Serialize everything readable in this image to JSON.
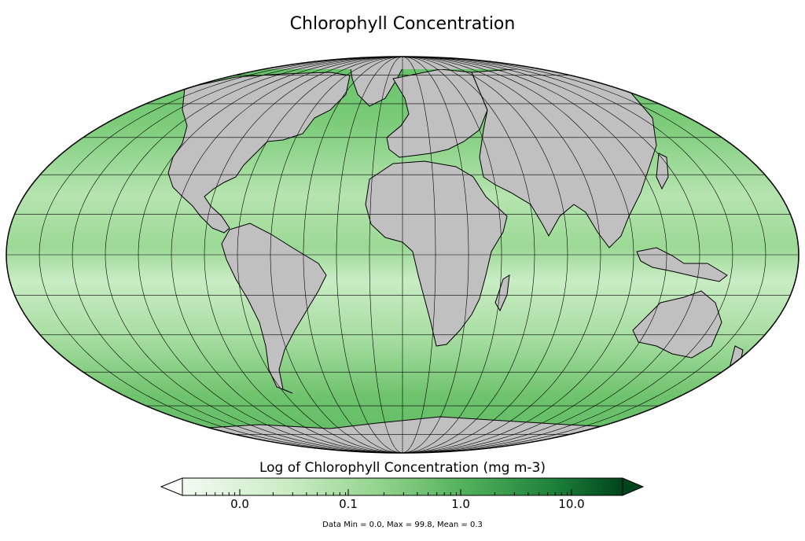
{
  "title": "Chlorophyll Concentration",
  "colorbar": {
    "label": "Log of Chlorophyll Concentration (mg m-3)",
    "ticks": [
      "0.0",
      "0.1",
      "1.0",
      "10.0"
    ],
    "scale": "log",
    "extend": "both",
    "colors": {
      "low": "#f2faf1",
      "mid": "#74c476",
      "high": "#00441b"
    }
  },
  "stats": "Data Min = 0.0, Max = 99.8, Mean = 0.3",
  "map": {
    "projection": "mollweide",
    "ocean_color": "#9ed99a",
    "land_color": "#c0c0c0",
    "graticule_color": "#000000"
  }
}
